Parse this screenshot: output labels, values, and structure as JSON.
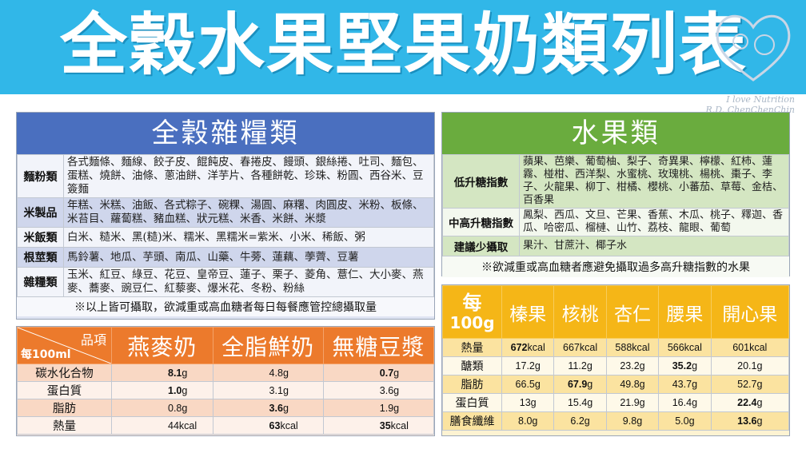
{
  "banner": {
    "title": "全穀水果堅果奶類列表",
    "watermark_lines": [
      "I love Nutrition",
      "R.D. ChenChenChin"
    ]
  },
  "grains": {
    "title": "全穀雜糧類",
    "rows": [
      {
        "category": "麵粉類",
        "items": "各式麵條、麵線、餃子皮、餛飩皮、春捲皮、饅頭、銀絲捲、吐司、麵包、蛋糕、燒餅、油條、蔥油餅、洋芋片、各種餅乾、珍珠、粉圓、西谷米、豆簽麵"
      },
      {
        "category": "米製品",
        "items": "年糕、米糕、油飯、各式粽子、碗粿、湯圓、麻糬、肉圓皮、米粉、板條、米苔目、蘿蔔糕、豬血糕、狀元糕、米香、米餅、米漿"
      },
      {
        "category": "米飯類",
        "items": "白米、糙米、黑(糙)米、糯米、黑糯米=紫米、小米、稀飯、粥"
      },
      {
        "category": "根莖類",
        "items": "馬鈴薯、地瓜、芋頭、南瓜、山藥、牛蒡、蓮藕、荸薺、豆薯"
      },
      {
        "category": "雜糧類",
        "items": "玉米、紅豆、綠豆、花豆、皇帝豆、蓮子、栗子、菱角、薏仁、大小麥、燕麥、蕎麥、豌豆仁、紅藜麥、爆米花、冬粉、粉絲"
      }
    ],
    "note": "※以上皆可攝取，欲減重或高血糖者每日每餐應管控總攝取量"
  },
  "fruit": {
    "title": "水果類",
    "rows": [
      {
        "category": "低升糖指數",
        "items": "蘋果、芭樂、葡萄柚、梨子、奇異果、檸檬、紅柿、蓮霧、椪柑、西洋梨、水蜜桃、玫瑰桃、楊桃、棗子、李子、火龍果、柳丁、柑橘、櫻桃、小蕃茄、草莓、金桔、百香果"
      },
      {
        "category": "中高升糖指數",
        "items": "鳳梨、西瓜、文旦、芒果、香蕉、木瓜、桃子、釋迦、香瓜、哈密瓜、榴槤、山竹、荔枝、龍眼、葡萄"
      },
      {
        "category": "建議少攝取",
        "items": "果汁、甘蔗汁、椰子水"
      }
    ],
    "note": "※欲減重或高血糖者應避免攝取過多高升糖指數的水果"
  },
  "milk": {
    "corner_top": "品項",
    "corner_bottom": "每100ml",
    "columns": [
      "燕麥奶",
      "全脂鮮奶",
      "無糖豆漿"
    ],
    "rows": [
      {
        "label": "碳水化合物",
        "values": [
          {
            "num": "8.1",
            "unit": "g",
            "bold": true
          },
          {
            "num": "4.8",
            "unit": "g",
            "bold": false
          },
          {
            "num": "0.7",
            "unit": "g",
            "bold": true
          }
        ]
      },
      {
        "label": "蛋白質",
        "values": [
          {
            "num": "1.0",
            "unit": "g",
            "bold": true
          },
          {
            "num": "3.1",
            "unit": "g",
            "bold": false
          },
          {
            "num": "3.6",
            "unit": "g",
            "bold": false
          }
        ]
      },
      {
        "label": "脂肪",
        "values": [
          {
            "num": "0.8",
            "unit": "g",
            "bold": false
          },
          {
            "num": "3.6",
            "unit": "g",
            "bold": true
          },
          {
            "num": "1.9",
            "unit": "g",
            "bold": false
          }
        ]
      },
      {
        "label": "熱量",
        "values": [
          {
            "num": "44",
            "unit": "kcal",
            "bold": false
          },
          {
            "num": "63",
            "unit": "kcal",
            "bold": true
          },
          {
            "num": "35",
            "unit": "kcal",
            "bold": true
          }
        ]
      }
    ]
  },
  "nuts": {
    "corner_line1": "每",
    "corner_line2": "100g",
    "columns": [
      "榛果",
      "核桃",
      "杏仁",
      "腰果",
      "開心果"
    ],
    "rows": [
      {
        "label": "熱量",
        "values": [
          {
            "num": "672",
            "unit": "kcal",
            "bold": true
          },
          {
            "num": "667",
            "unit": "kcal",
            "bold": false
          },
          {
            "num": "588",
            "unit": "kcal",
            "bold": false
          },
          {
            "num": "566",
            "unit": "kcal",
            "bold": false
          },
          {
            "num": "601",
            "unit": "kcal",
            "bold": false
          }
        ]
      },
      {
        "label": "醣類",
        "values": [
          {
            "num": "17.2",
            "unit": "g",
            "bold": false
          },
          {
            "num": "11.2",
            "unit": "g",
            "bold": false
          },
          {
            "num": "23.2",
            "unit": "g",
            "bold": false
          },
          {
            "num": "35.2",
            "unit": "g",
            "bold": true
          },
          {
            "num": "20.1",
            "unit": "g",
            "bold": false
          }
        ]
      },
      {
        "label": "脂肪",
        "values": [
          {
            "num": "66.5",
            "unit": "g",
            "bold": false
          },
          {
            "num": "67.9",
            "unit": "g",
            "bold": true
          },
          {
            "num": "49.8",
            "unit": "g",
            "bold": false
          },
          {
            "num": "43.7",
            "unit": "g",
            "bold": false
          },
          {
            "num": "52.7",
            "unit": "g",
            "bold": false
          }
        ]
      },
      {
        "label": "蛋白質",
        "values": [
          {
            "num": "13",
            "unit": "g",
            "bold": false
          },
          {
            "num": "15.4",
            "unit": "g",
            "bold": false
          },
          {
            "num": "21.9",
            "unit": "g",
            "bold": false
          },
          {
            "num": "16.4",
            "unit": "g",
            "bold": false
          },
          {
            "num": "22.4",
            "unit": "g",
            "bold": true
          }
        ]
      },
      {
        "label": "膳食纖維",
        "values": [
          {
            "num": "8.0",
            "unit": "g",
            "bold": false
          },
          {
            "num": "6.2",
            "unit": "g",
            "bold": false
          },
          {
            "num": "9.8",
            "unit": "g",
            "bold": false
          },
          {
            "num": "5.0",
            "unit": "g",
            "bold": false
          },
          {
            "num": "13.6",
            "unit": "g",
            "bold": true
          }
        ]
      }
    ]
  }
}
